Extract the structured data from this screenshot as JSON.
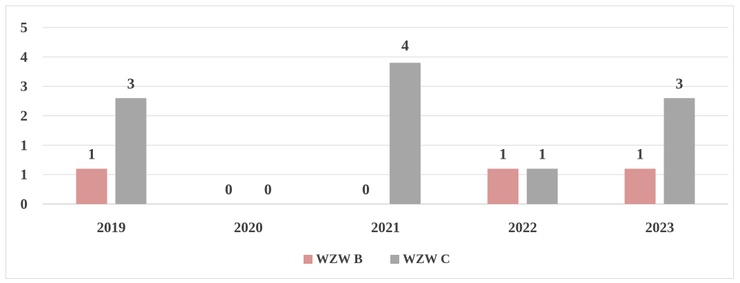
{
  "chart_data": {
    "type": "bar",
    "title": "",
    "xlabel": "",
    "ylabel": "",
    "categories": [
      "2019",
      "2020",
      "2021",
      "2022",
      "2023"
    ],
    "series": [
      {
        "name": "WZW B",
        "values": [
          1,
          0,
          0,
          1,
          1
        ],
        "color": "#d99694"
      },
      {
        "name": "WZW C",
        "values": [
          3,
          0,
          4,
          1,
          3
        ],
        "color": "#a6a6a6"
      }
    ],
    "data_labels": [
      [
        "1",
        "0",
        "0",
        "1",
        "1"
      ],
      [
        "3",
        "0",
        "4",
        "1",
        "3"
      ]
    ],
    "y_tick_labels": [
      "0",
      "1",
      "1",
      "2",
      "3",
      "4",
      "5"
    ],
    "ylim": [
      0,
      5
    ],
    "grid": true,
    "legend": "bottom",
    "label_visible": [
      [
        true,
        true,
        true,
        true,
        true
      ],
      [
        true,
        true,
        false,
        true,
        true
      ]
    ]
  }
}
